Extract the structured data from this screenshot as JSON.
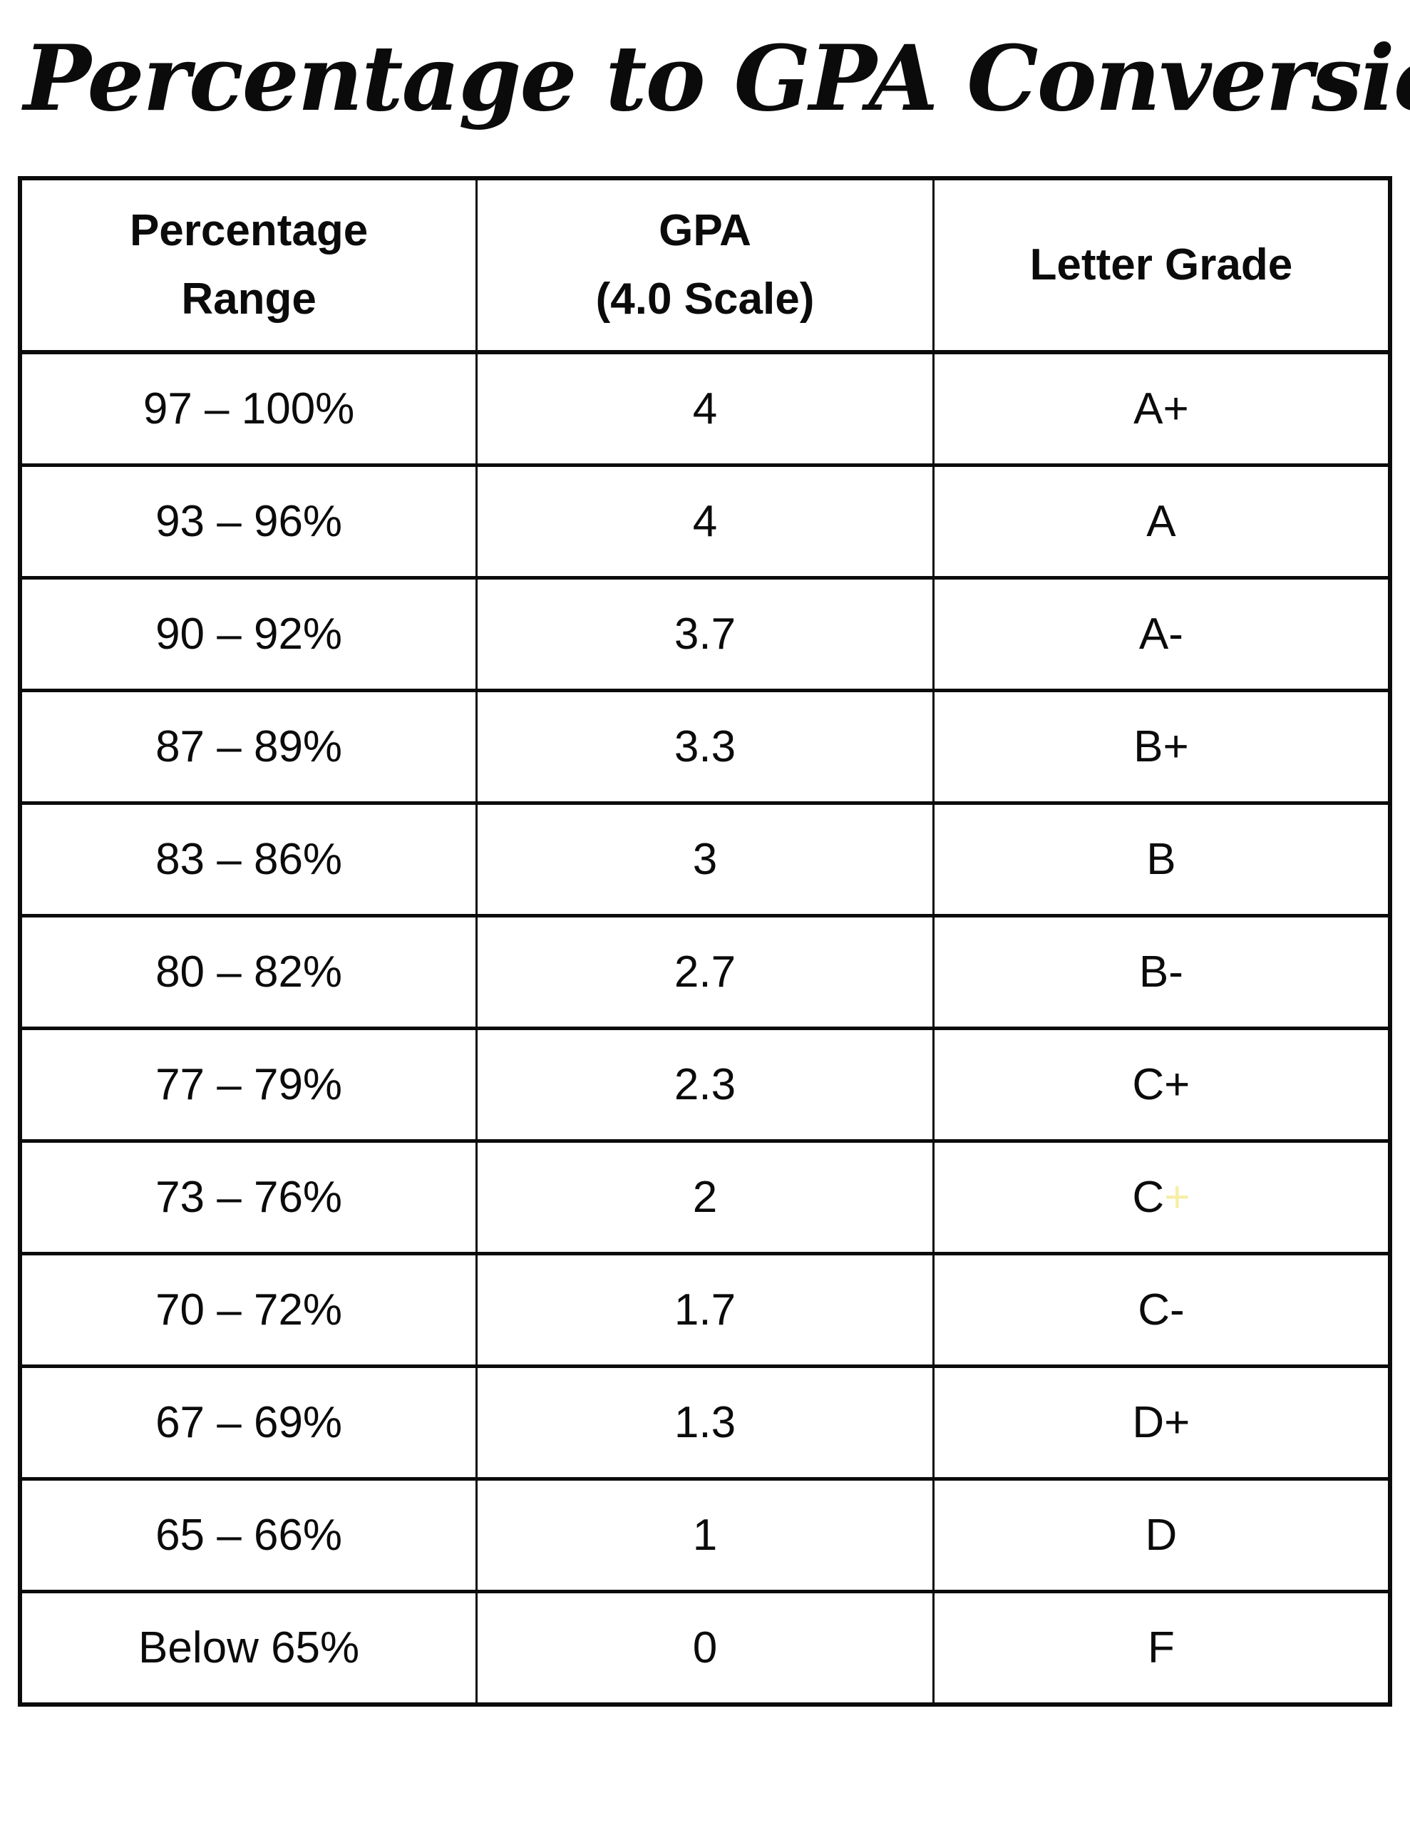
{
  "page": {
    "title": "Percentage to GPA Conversion Table"
  },
  "colors": {
    "text": "#0b0b0b",
    "border": "#0b0b0b",
    "faint_plus_yellow": "#f5eea6"
  },
  "table": {
    "headers": [
      {
        "lines": [
          "Percentage",
          "Range"
        ]
      },
      {
        "lines": [
          "GPA",
          "(4.0 Scale)"
        ]
      },
      {
        "lines": [
          "Letter Grade"
        ]
      }
    ],
    "rows": [
      {
        "range": "97 – 100%",
        "gpa": "4",
        "grade": [
          {
            "text": "A+"
          }
        ]
      },
      {
        "range": "93 – 96%",
        "gpa": "4",
        "grade": [
          {
            "text": "A"
          }
        ]
      },
      {
        "range": "90 – 92%",
        "gpa": "3.7",
        "grade": [
          {
            "text": "A-"
          }
        ]
      },
      {
        "range": "87 – 89%",
        "gpa": "3.3",
        "grade": [
          {
            "text": "B+"
          }
        ]
      },
      {
        "range": "83 – 86%",
        "gpa": "3",
        "grade": [
          {
            "text": "B"
          }
        ]
      },
      {
        "range": "80 – 82%",
        "gpa": "2.7",
        "grade": [
          {
            "text": "B-"
          }
        ]
      },
      {
        "range": "77 – 79%",
        "gpa": "2.3",
        "grade": [
          {
            "text": "C+"
          }
        ]
      },
      {
        "range": "73 – 76%",
        "gpa": "2",
        "grade": [
          {
            "text": "C"
          },
          {
            "text": "+",
            "color": "#f5eea6"
          }
        ]
      },
      {
        "range": "70 – 72%",
        "gpa": "1.7",
        "grade": [
          {
            "text": "C-"
          }
        ]
      },
      {
        "range": "67 – 69%",
        "gpa": "1.3",
        "grade": [
          {
            "text": "D+"
          }
        ]
      },
      {
        "range": "65 – 66%",
        "gpa": "1",
        "grade": [
          {
            "text": "D"
          }
        ]
      },
      {
        "range": "Below 65%",
        "gpa": "0",
        "grade": [
          {
            "text": "F"
          }
        ]
      }
    ]
  }
}
